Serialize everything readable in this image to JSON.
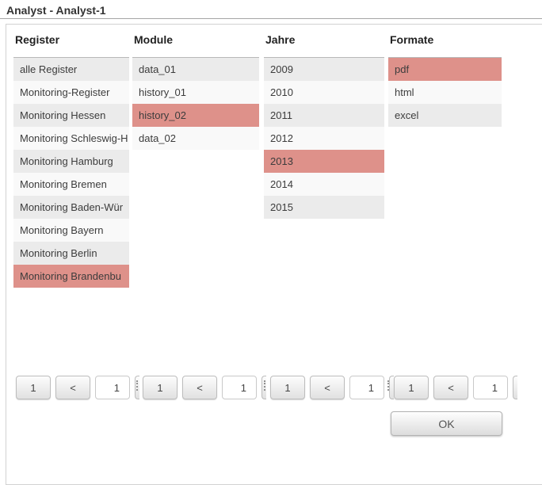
{
  "title": "Analyst - Analyst-1",
  "columns": [
    {
      "header": "Register",
      "items": [
        {
          "label": "alle Register",
          "selected": false
        },
        {
          "label": "Monitoring-Register",
          "selected": false
        },
        {
          "label": "Monitoring Hessen",
          "selected": false
        },
        {
          "label": "Monitoring Schleswig-H",
          "selected": false
        },
        {
          "label": "Monitoring Hamburg",
          "selected": false
        },
        {
          "label": "Monitoring Bremen",
          "selected": false
        },
        {
          "label": "Monitoring Baden-Wür",
          "selected": false
        },
        {
          "label": "Monitoring Bayern",
          "selected": false
        },
        {
          "label": "Monitoring Berlin",
          "selected": false
        },
        {
          "label": "Monitoring Brandenbu",
          "selected": true
        }
      ]
    },
    {
      "header": "Module",
      "items": [
        {
          "label": "data_01",
          "selected": false
        },
        {
          "label": "history_01",
          "selected": false
        },
        {
          "label": "history_02",
          "selected": true
        },
        {
          "label": "data_02",
          "selected": false
        }
      ]
    },
    {
      "header": "Jahre",
      "items": [
        {
          "label": "2009",
          "selected": false
        },
        {
          "label": "2010",
          "selected": false
        },
        {
          "label": "2011",
          "selected": false
        },
        {
          "label": "2012",
          "selected": false
        },
        {
          "label": "2013",
          "selected": true
        },
        {
          "label": "2014",
          "selected": false
        },
        {
          "label": "2015",
          "selected": false
        }
      ]
    },
    {
      "header": "Formate",
      "items": [
        {
          "label": "pdf",
          "selected": true
        },
        {
          "label": "html",
          "selected": false
        },
        {
          "label": "excel",
          "selected": false
        }
      ]
    }
  ],
  "pagination": {
    "groups": [
      {
        "page_button": "1",
        "prev_button": "<",
        "page_input": "1"
      },
      {
        "page_button": "1",
        "prev_button": "<",
        "page_input": "1"
      },
      {
        "page_button": "1",
        "prev_button": "<",
        "page_input": "1"
      },
      {
        "page_button": "1",
        "prev_button": "<",
        "page_input": "1"
      }
    ]
  },
  "ok_button": "OK",
  "colors": {
    "selected": "#de918a",
    "row_odd": "#ebebeb",
    "row_even": "#f9f9f9",
    "title_text": "#333333",
    "row_text": "#3c3c3c"
  }
}
